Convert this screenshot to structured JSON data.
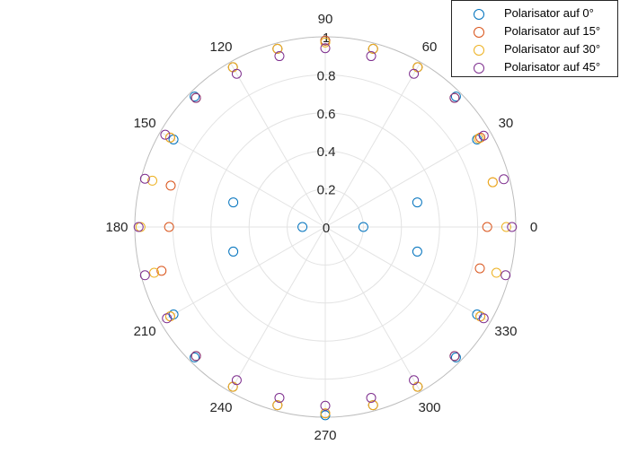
{
  "chart_data": {
    "type": "polar-scatter",
    "theta_unit": "degrees",
    "r_range": [
      0,
      1
    ],
    "r_ticks": [
      "0",
      "0.2",
      "0.4",
      "0.6",
      "0.8",
      "1"
    ],
    "theta_ticks": [
      "0",
      "30",
      "60",
      "90",
      "120",
      "150",
      "180",
      "210",
      "240",
      "270",
      "300",
      "330"
    ],
    "grid": true,
    "legend_position": "top-right",
    "series": [
      {
        "name": "Polarisator auf 0°",
        "color": "#0072BD",
        "theta": [
          0,
          15,
          30,
          45,
          60,
          75,
          90,
          105,
          120,
          135,
          150,
          165,
          180,
          195,
          210,
          225,
          240,
          255,
          270,
          285,
          300,
          315,
          330,
          345
        ],
        "r": [
          0.2,
          0.5,
          0.92,
          0.97,
          0.97,
          0.97,
          0.98,
          0.97,
          0.97,
          0.97,
          0.92,
          0.5,
          0.12,
          0.5,
          0.92,
          0.97,
          0.97,
          0.97,
          0.99,
          0.97,
          0.97,
          0.97,
          0.92,
          0.5
        ]
      },
      {
        "name": "Polarisator auf 15°",
        "color": "#D95319",
        "theta": [
          0,
          15,
          30,
          45,
          60,
          75,
          90,
          105,
          120,
          135,
          150,
          165,
          180,
          195,
          210,
          225,
          240,
          255,
          270,
          285,
          300,
          315,
          330,
          345
        ],
        "r": [
          0.85,
          0.91,
          0.94,
          0.96,
          0.97,
          0.97,
          0.98,
          0.97,
          0.97,
          0.96,
          0.94,
          0.84,
          0.82,
          0.89,
          0.94,
          0.96,
          0.97,
          0.97,
          0.98,
          0.97,
          0.97,
          0.96,
          0.94,
          0.84
        ]
      },
      {
        "name": "Polarisator auf 30°",
        "color": "#EDB120",
        "theta": [
          0,
          15,
          30,
          45,
          60,
          75,
          90,
          105,
          120,
          135,
          150,
          165,
          180,
          195,
          210,
          225,
          240,
          255,
          270,
          285,
          300,
          315,
          330,
          345
        ],
        "r": [
          0.95,
          0.91,
          0.93,
          0.96,
          0.97,
          0.97,
          0.97,
          0.97,
          0.97,
          0.96,
          0.94,
          0.94,
          0.97,
          0.93,
          0.94,
          0.96,
          0.97,
          0.97,
          0.98,
          0.97,
          0.97,
          0.96,
          0.94,
          0.93
        ]
      },
      {
        "name": "Polarisator auf 45°",
        "color": "#7E2F8E",
        "theta": [
          0,
          15,
          30,
          45,
          60,
          75,
          90,
          105,
          120,
          135,
          150,
          165,
          180,
          195,
          210,
          225,
          240,
          255,
          270,
          285,
          300,
          315,
          330,
          345
        ],
        "r": [
          0.98,
          0.97,
          0.96,
          0.96,
          0.93,
          0.93,
          0.94,
          0.93,
          0.93,
          0.96,
          0.97,
          0.98,
          0.98,
          0.98,
          0.96,
          0.96,
          0.93,
          0.93,
          0.94,
          0.93,
          0.93,
          0.96,
          0.96,
          0.98
        ]
      }
    ]
  }
}
